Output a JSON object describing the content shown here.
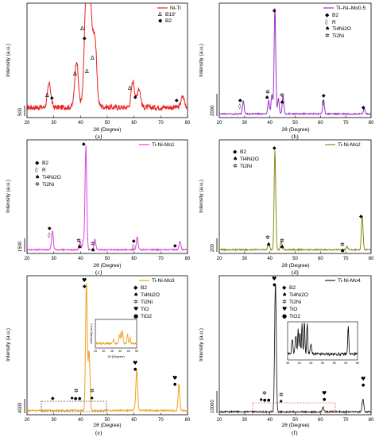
{
  "chart_data": [
    {
      "type": "line",
      "panel": "(a)",
      "series": [
        {
          "name": "Ni-Ti",
          "color": "#e82020"
        }
      ],
      "xlabel": "2θ (Degree)",
      "ylabel": "Intensity (a.u.)",
      "scale_bar_label": "500",
      "xlim": [
        20,
        80
      ],
      "xticks": [
        20,
        30,
        40,
        50,
        60,
        70,
        80
      ],
      "legend": [
        {
          "symbol": "triangle",
          "label": "B19′"
        },
        {
          "symbol": "diamond",
          "label": "B2"
        }
      ],
      "peaks": [
        {
          "x": 28.3,
          "y": 0.22
        },
        {
          "x": 38.5,
          "y": 0.42
        },
        {
          "x": 42.0,
          "y": 0.88
        },
        {
          "x": 43.3,
          "y": 0.68
        },
        {
          "x": 44.1,
          "y": 0.44
        },
        {
          "x": 45.4,
          "y": 0.58
        },
        {
          "x": 59.6,
          "y": 0.24
        },
        {
          "x": 61.8,
          "y": 0.18
        },
        {
          "x": 78.2,
          "y": 0.1
        }
      ],
      "baseline": 0.08
    },
    {
      "type": "line",
      "panel": "(b)",
      "series": [
        {
          "name": "Ti–Ni–Mo0.5",
          "color": "#9b30c8"
        }
      ],
      "xlabel": "2θ (Degree)",
      "ylabel": "Intensity (a.u.)",
      "scale_bar_label": "2000",
      "xlim": [
        20,
        80
      ],
      "xticks": [
        20,
        30,
        40,
        50,
        60,
        70,
        80
      ],
      "legend": [
        {
          "symbol": "diamond",
          "label": "B2"
        },
        {
          "symbol": "open-diamond",
          "label": "R"
        },
        {
          "symbol": "spade",
          "label": "Ti4Ni2O"
        },
        {
          "symbol": "asterisk",
          "label": "Ti2Ni"
        }
      ],
      "peaks": [
        {
          "x": 29.5,
          "y": 0.12
        },
        {
          "x": 39.5,
          "y": 0.12
        },
        {
          "x": 40.8,
          "y": 0.18
        },
        {
          "x": 42.0,
          "y": 0.98
        },
        {
          "x": 43.4,
          "y": 0.14
        },
        {
          "x": 45.2,
          "y": 0.16
        },
        {
          "x": 61.2,
          "y": 0.13
        },
        {
          "x": 77.3,
          "y": 0.05
        }
      ],
      "baseline": 0.02
    },
    {
      "type": "line",
      "panel": "(c)",
      "series": [
        {
          "name": "Ti-Ni-Mo1",
          "color": "#e040e0"
        }
      ],
      "xlabel": "2θ (Degree)",
      "ylabel": "Intensity (a.u.)",
      "scale_bar_label": "1500",
      "xlim": [
        20,
        80
      ],
      "xticks": [
        20,
        30,
        40,
        50,
        60,
        70,
        80
      ],
      "legend": [
        {
          "symbol": "diamond",
          "label": "B2"
        },
        {
          "symbol": "open-diamond",
          "label": "R"
        },
        {
          "symbol": "spade",
          "label": "Ti4Ni2O"
        },
        {
          "symbol": "asterisk",
          "label": "Ti2Ni"
        }
      ],
      "peaks": [
        {
          "x": 29.5,
          "y": 0.18
        },
        {
          "x": 39.8,
          "y": 0.08
        },
        {
          "x": 41.0,
          "y": 0.08
        },
        {
          "x": 42.0,
          "y": 0.97
        },
        {
          "x": 45.4,
          "y": 0.1
        },
        {
          "x": 61.2,
          "y": 0.12
        },
        {
          "x": 77.2,
          "y": 0.08
        }
      ],
      "baseline": 0.02
    },
    {
      "type": "line",
      "panel": "(d)",
      "series": [
        {
          "name": "Ti-Ni-Mo2",
          "color": "#8a8a1a"
        }
      ],
      "xlabel": "2θ (Degree)",
      "ylabel": "Intensity (a.u.)",
      "scale_bar_label": "200",
      "xlim": [
        20,
        80
      ],
      "xticks": [
        20,
        30,
        40,
        50,
        60,
        70,
        80
      ],
      "legend": [
        {
          "symbol": "diamond",
          "label": "B2"
        },
        {
          "symbol": "spade",
          "label": "Ti4Ni2O"
        },
        {
          "symbol": "asterisk",
          "label": "Ti2Ni"
        }
      ],
      "peaks": [
        {
          "x": 39.5,
          "y": 0.07
        },
        {
          "x": 42.0,
          "y": 0.93
        },
        {
          "x": 44.5,
          "y": 0.08
        },
        {
          "x": 70.5,
          "y": 0.03
        },
        {
          "x": 76.5,
          "y": 0.32
        }
      ],
      "baseline": 0.02
    },
    {
      "type": "line",
      "panel": "(e)",
      "series": [
        {
          "name": "Ti-Ni-Mo3",
          "color": "#f0a020"
        }
      ],
      "xlabel": "2θ (Degree)",
      "ylabel": "Intensity (a.u.)",
      "scale_bar_label": "4000",
      "xlim": [
        20,
        80
      ],
      "xticks": [
        20,
        30,
        40,
        50,
        60,
        70,
        80
      ],
      "legend": [
        {
          "symbol": "diamond",
          "label": "B2"
        },
        {
          "symbol": "spade",
          "label": "Ti4Ni2O"
        },
        {
          "symbol": "asterisk",
          "label": "Ti2Ni"
        },
        {
          "symbol": "heart",
          "label": "TiO"
        },
        {
          "symbol": "circle",
          "label": "TiO2"
        }
      ],
      "inset": {
        "xlabel": "2θ (Degree)",
        "ylabel": "Intensity (a.u.)",
        "xlim": [
          25,
          50
        ],
        "xticks": [
          25,
          30,
          35,
          40,
          45,
          50
        ]
      },
      "peaks": [
        {
          "x": 42.2,
          "y": 0.97
        },
        {
          "x": 43.2,
          "y": 0.45
        },
        {
          "x": 61.0,
          "y": 0.31
        },
        {
          "x": 76.8,
          "y": 0.2
        }
      ],
      "baseline": 0.02
    },
    {
      "type": "line",
      "panel": "(f)",
      "series": [
        {
          "name": "Ti-Ni-Mo4",
          "color": "#222222"
        }
      ],
      "xlabel": "2θ (Degree)",
      "ylabel": "Intensity (a.u.)",
      "scale_bar_label": "10000",
      "xlim": [
        20,
        80
      ],
      "xticks": [
        20,
        30,
        40,
        50,
        60,
        70,
        80
      ],
      "legend": [
        {
          "symbol": "diamond",
          "label": "B2"
        },
        {
          "symbol": "spade",
          "label": "Ti4Ni2O"
        },
        {
          "symbol": "asterisk",
          "label": "Ti2Ni"
        },
        {
          "symbol": "heart",
          "label": "TiO"
        },
        {
          "symbol": "circle",
          "label": "TiO2"
        }
      ],
      "inset": {
        "xticks": [
          35,
          40,
          45,
          50,
          55,
          60,
          65
        ],
        "xlim": [
          35,
          65
        ]
      },
      "peaks": [
        {
          "x": 42.2,
          "y": 0.98
        },
        {
          "x": 61.0,
          "y": 0.04
        },
        {
          "x": 76.8,
          "y": 0.1
        }
      ],
      "baseline": 0.01
    }
  ]
}
